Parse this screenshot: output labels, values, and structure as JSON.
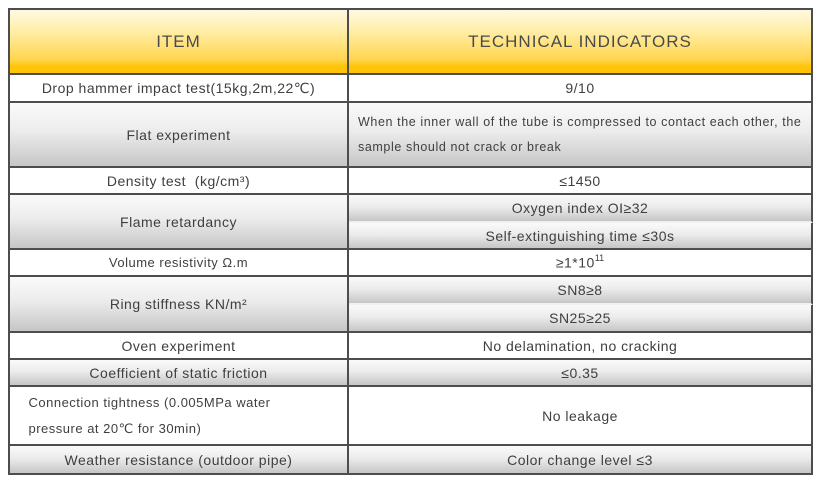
{
  "colors": {
    "header_gold_top": "#fff9e2",
    "header_gold_bottom": "#ffc408",
    "border_dark": "#4d4d4d",
    "row_gray_top": "#fafafa",
    "row_gray_bottom": "#c6c6c6",
    "sub_divider_light": "#f0f0f0",
    "text": "#3f3f3f"
  },
  "table": {
    "headers": {
      "item": "ITEM",
      "indicators": "TECHNICAL INDICATORS"
    },
    "rows": [
      {
        "item": "Drop hammer impact test(15kg,2m,22℃)",
        "value": "9/10"
      },
      {
        "item": "Flat experiment",
        "value": "When the inner wall of the tube is compressed to contact each other, the sample should not crack or break"
      },
      {
        "item": "Density test  (kg/cm³)",
        "value": "≤1450"
      },
      {
        "item": "Flame retardancy",
        "values": [
          "Oxygen index OI≥32",
          "Self-extinguishing time ≤30s"
        ]
      },
      {
        "item": "Volume resistivity Ω.m",
        "value_base": "≥1*10",
        "value_sup": "11"
      },
      {
        "item": "Ring stiffness KN/m²",
        "values": [
          "SN8≥8",
          "SN25≥25"
        ]
      },
      {
        "item": "Oven experiment",
        "value": "No delamination, no cracking"
      },
      {
        "item": "Coefficient of static friction",
        "value": "≤0.35"
      },
      {
        "item": "Connection tightness (0.005MPa water pressure at 20℃ for 30min)",
        "value": "No leakage"
      },
      {
        "item": "Weather resistance (outdoor pipe)",
        "value": "Color change level ≤3"
      }
    ]
  }
}
